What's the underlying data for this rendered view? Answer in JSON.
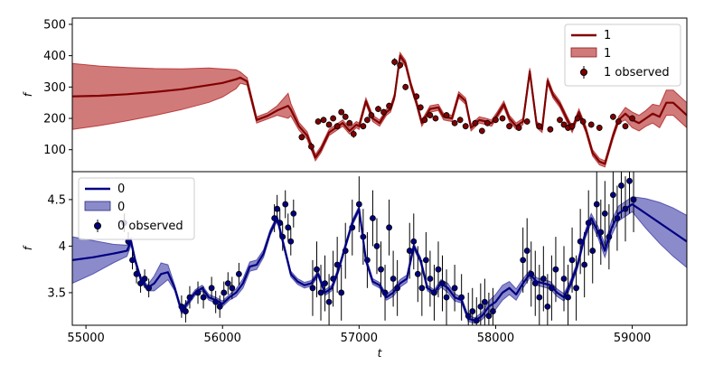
{
  "chart_data": [
    {
      "type": "line",
      "panel": "top",
      "ylabel": "f",
      "xlabel": "",
      "xlim": [
        54900,
        59400
      ],
      "ylim": [
        30,
        520
      ],
      "yticks": [
        100,
        200,
        300,
        400,
        500
      ],
      "legend": {
        "placement": "top-right"
      },
      "colors": {
        "line": "#800000",
        "band": "#b22222",
        "points": "#800000"
      },
      "series": [
        {
          "name": "1",
          "kind": "model",
          "x": [
            54900,
            55100,
            55300,
            55500,
            55700,
            55900,
            56000,
            56100,
            56130,
            56180,
            56250,
            56330,
            56400,
            56480,
            56500,
            56560,
            56620,
            56680,
            56720,
            56780,
            56830,
            56880,
            56930,
            56980,
            57000,
            57050,
            57100,
            57150,
            57200,
            57230,
            57260,
            57300,
            57340,
            57380,
            57420,
            57460,
            57520,
            57580,
            57620,
            57680,
            57730,
            57780,
            57820,
            57880,
            57930,
            57970,
            58010,
            58060,
            58100,
            58150,
            58200,
            58250,
            58300,
            58340,
            58380,
            58420,
            58470,
            58520,
            58560,
            58610,
            58660,
            58710,
            58760,
            58800,
            58860,
            58900,
            58950,
            59000,
            59050,
            59100,
            59150,
            59200,
            59250,
            59300,
            59350,
            59400
          ],
          "y": [
            270,
            272,
            277,
            284,
            293,
            306,
            313,
            325,
            330,
            318,
            195,
            208,
            225,
            240,
            228,
            175,
            145,
            75,
            100,
            155,
            170,
            185,
            160,
            180,
            175,
            255,
            200,
            185,
            220,
            230,
            270,
            400,
            375,
            305,
            250,
            185,
            230,
            235,
            205,
            200,
            275,
            255,
            170,
            195,
            190,
            185,
            210,
            245,
            200,
            175,
            190,
            350,
            180,
            165,
            320,
            275,
            245,
            200,
            165,
            220,
            165,
            90,
            62,
            55,
            145,
            195,
            215,
            195,
            185,
            200,
            215,
            205,
            250,
            250,
            230,
            210
          ],
          "band": [
            105,
            95,
            85,
            75,
            65,
            55,
            45,
            30,
            18,
            12,
            10,
            10,
            15,
            40,
            20,
            12,
            12,
            10,
            10,
            10,
            10,
            10,
            10,
            10,
            10,
            10,
            10,
            10,
            10,
            10,
            10,
            10,
            10,
            10,
            10,
            10,
            10,
            10,
            10,
            10,
            10,
            10,
            10,
            10,
            10,
            10,
            10,
            10,
            10,
            10,
            10,
            10,
            10,
            10,
            10,
            10,
            10,
            10,
            10,
            10,
            10,
            10,
            10,
            10,
            10,
            10,
            20,
            25,
            25,
            25,
            30,
            35,
            40,
            40,
            40,
            40
          ]
        },
        {
          "name": "1 observed",
          "kind": "observed",
          "x": [
            56580,
            56650,
            56700,
            56740,
            56780,
            56810,
            56840,
            56870,
            56900,
            56930,
            56960,
            57030,
            57060,
            57090,
            57140,
            57180,
            57220,
            57260,
            57300,
            57340,
            57420,
            57450,
            57480,
            57520,
            57560,
            57640,
            57700,
            57740,
            57780,
            57850,
            57900,
            57940,
            58000,
            58050,
            58100,
            58170,
            58230,
            58320,
            58400,
            58470,
            58500,
            58530,
            58560,
            58600,
            58640,
            58700,
            58760,
            58860,
            58900,
            58950,
            59000
          ],
          "y": [
            140,
            110,
            190,
            195,
            180,
            200,
            175,
            220,
            205,
            185,
            150,
            175,
            195,
            210,
            230,
            220,
            240,
            380,
            370,
            300,
            270,
            235,
            195,
            210,
            200,
            210,
            185,
            195,
            175,
            185,
            160,
            185,
            195,
            200,
            175,
            170,
            190,
            175,
            165,
            195,
            180,
            170,
            175,
            200,
            190,
            180,
            170,
            205,
            190,
            175,
            200
          ],
          "err": [
            10,
            12,
            10,
            10,
            10,
            10,
            10,
            10,
            10,
            10,
            12,
            10,
            10,
            10,
            10,
            10,
            10,
            12,
            12,
            10,
            10,
            10,
            10,
            10,
            10,
            10,
            10,
            10,
            10,
            10,
            10,
            10,
            10,
            10,
            10,
            10,
            10,
            10,
            10,
            10,
            10,
            10,
            10,
            10,
            10,
            10,
            10,
            10,
            10,
            10,
            10
          ]
        }
      ]
    },
    {
      "type": "line",
      "panel": "bottom",
      "ylabel": "f",
      "xlabel": "t",
      "xlim": [
        54900,
        59400
      ],
      "ylim": [
        3.15,
        4.8
      ],
      "xticks": [
        55000,
        56000,
        57000,
        58000,
        59000
      ],
      "yticks": [
        3.5,
        4.0,
        4.5
      ],
      "legend": {
        "placement": "top-left"
      },
      "colors": {
        "line": "#000080",
        "band": "#3d3da8",
        "points": "#000080"
      },
      "series": [
        {
          "name": "0",
          "kind": "model",
          "x": [
            54900,
            55050,
            55200,
            55300,
            55330,
            55360,
            55400,
            55450,
            55500,
            55550,
            55600,
            55650,
            55700,
            55750,
            55800,
            55850,
            55900,
            55950,
            56000,
            56050,
            56100,
            56150,
            56200,
            56250,
            56300,
            56350,
            56400,
            56450,
            56500,
            56550,
            56600,
            56650,
            56700,
            56750,
            56800,
            56850,
            56900,
            56950,
            57000,
            57050,
            57100,
            57150,
            57200,
            57250,
            57300,
            57350,
            57400,
            57450,
            57500,
            57550,
            57600,
            57650,
            57700,
            57750,
            57800,
            57850,
            57900,
            57950,
            58000,
            58050,
            58100,
            58150,
            58200,
            58250,
            58300,
            58350,
            58400,
            58450,
            58500,
            58550,
            58600,
            58650,
            58700,
            58750,
            58800,
            58850,
            58900,
            58950,
            59000,
            59050,
            59100,
            59200,
            59300,
            59400
          ],
          "y": [
            3.85,
            3.88,
            3.92,
            3.95,
            4.05,
            3.85,
            3.65,
            3.55,
            3.6,
            3.7,
            3.72,
            3.55,
            3.3,
            3.4,
            3.5,
            3.55,
            3.45,
            3.42,
            3.38,
            3.45,
            3.5,
            3.6,
            3.78,
            3.8,
            3.92,
            4.15,
            4.3,
            4.0,
            3.7,
            3.62,
            3.58,
            3.6,
            3.7,
            3.5,
            3.55,
            3.75,
            4.0,
            4.25,
            4.4,
            3.85,
            3.62,
            3.58,
            3.45,
            3.5,
            3.6,
            3.65,
            4.0,
            3.85,
            3.55,
            3.5,
            3.6,
            3.55,
            3.45,
            3.42,
            3.22,
            3.2,
            3.25,
            3.35,
            3.4,
            3.5,
            3.55,
            3.48,
            3.6,
            3.7,
            3.62,
            3.6,
            3.58,
            3.5,
            3.45,
            3.6,
            3.8,
            4.1,
            4.3,
            4.15,
            3.95,
            4.2,
            4.35,
            4.4,
            4.45,
            4.4,
            4.35,
            4.25,
            4.15,
            4.05
          ],
          "band": [
            0.25,
            0.18,
            0.1,
            0.06,
            0.04,
            0.03,
            0.03,
            0.03,
            0.08,
            0.12,
            0.08,
            0.03,
            0.03,
            0.03,
            0.03,
            0.03,
            0.03,
            0.03,
            0.03,
            0.03,
            0.04,
            0.05,
            0.05,
            0.05,
            0.04,
            0.03,
            0.03,
            0.03,
            0.03,
            0.03,
            0.03,
            0.03,
            0.03,
            0.03,
            0.03,
            0.03,
            0.03,
            0.03,
            0.03,
            0.03,
            0.03,
            0.03,
            0.03,
            0.04,
            0.04,
            0.04,
            0.03,
            0.03,
            0.03,
            0.03,
            0.04,
            0.05,
            0.04,
            0.03,
            0.03,
            0.03,
            0.04,
            0.06,
            0.08,
            0.08,
            0.07,
            0.06,
            0.05,
            0.04,
            0.04,
            0.04,
            0.04,
            0.04,
            0.04,
            0.04,
            0.04,
            0.04,
            0.05,
            0.06,
            0.07,
            0.08,
            0.08,
            0.08,
            0.08,
            0.12,
            0.16,
            0.22,
            0.26,
            0.28
          ]
        },
        {
          "name": "0 observed",
          "kind": "observed",
          "x": [
            55280,
            55310,
            55340,
            55370,
            55400,
            55430,
            55460,
            55700,
            55730,
            55760,
            55820,
            55860,
            55920,
            55950,
            55980,
            56010,
            56040,
            56070,
            56120,
            56380,
            56400,
            56420,
            56440,
            56460,
            56480,
            56500,
            56520,
            56660,
            56690,
            56720,
            56750,
            56780,
            56810,
            56840,
            56870,
            56900,
            56950,
            57000,
            57030,
            57060,
            57100,
            57130,
            57160,
            57190,
            57220,
            57250,
            57280,
            57370,
            57400,
            57430,
            57460,
            57490,
            57520,
            57550,
            57580,
            57610,
            57640,
            57700,
            57750,
            57800,
            57830,
            57860,
            57890,
            57920,
            57950,
            57980,
            58200,
            58230,
            58260,
            58290,
            58320,
            58350,
            58380,
            58410,
            58440,
            58500,
            58530,
            58560,
            58590,
            58620,
            58650,
            58680,
            58710,
            58740,
            58770,
            58800,
            58830,
            58860,
            58890,
            58920,
            58950,
            58980,
            59010
          ],
          "y": [
            4.25,
            4.05,
            3.85,
            3.7,
            3.6,
            3.65,
            3.55,
            3.35,
            3.3,
            3.45,
            3.5,
            3.45,
            3.55,
            3.4,
            3.35,
            3.5,
            3.6,
            3.55,
            3.7,
            4.3,
            4.4,
            4.25,
            4.1,
            4.45,
            4.2,
            4.05,
            4.35,
            3.55,
            3.75,
            3.5,
            3.6,
            3.4,
            3.65,
            3.8,
            3.5,
            3.95,
            4.2,
            4.45,
            4.1,
            3.85,
            4.3,
            4.0,
            3.75,
            3.5,
            4.2,
            3.65,
            3.55,
            3.95,
            4.05,
            3.7,
            3.55,
            3.85,
            3.65,
            3.5,
            3.75,
            3.6,
            3.45,
            3.55,
            3.45,
            3.25,
            3.3,
            3.2,
            3.35,
            3.4,
            3.25,
            3.3,
            3.85,
            3.95,
            3.7,
            3.6,
            3.45,
            3.65,
            3.35,
            3.55,
            3.75,
            3.65,
            3.45,
            3.85,
            3.55,
            4.05,
            3.8,
            4.25,
            3.95,
            4.45,
            4.15,
            4.35,
            4.1,
            4.55,
            4.3,
            4.65,
            4.4,
            4.7,
            4.5
          ],
          "err": [
            0.1,
            0.1,
            0.1,
            0.1,
            0.1,
            0.1,
            0.1,
            0.12,
            0.12,
            0.12,
            0.12,
            0.12,
            0.12,
            0.12,
            0.12,
            0.12,
            0.12,
            0.12,
            0.12,
            0.15,
            0.15,
            0.15,
            0.15,
            0.15,
            0.15,
            0.15,
            0.15,
            0.3,
            0.3,
            0.3,
            0.3,
            0.3,
            0.3,
            0.3,
            0.3,
            0.3,
            0.3,
            0.3,
            0.3,
            0.3,
            0.3,
            0.3,
            0.3,
            0.3,
            0.3,
            0.3,
            0.3,
            0.3,
            0.3,
            0.3,
            0.3,
            0.3,
            0.3,
            0.3,
            0.3,
            0.3,
            0.3,
            0.25,
            0.25,
            0.25,
            0.25,
            0.25,
            0.25,
            0.25,
            0.25,
            0.25,
            0.35,
            0.35,
            0.35,
            0.35,
            0.35,
            0.35,
            0.35,
            0.35,
            0.35,
            0.35,
            0.35,
            0.35,
            0.35,
            0.35,
            0.35,
            0.35,
            0.35,
            0.35,
            0.35,
            0.35,
            0.35,
            0.35,
            0.35,
            0.35,
            0.35,
            0.35,
            0.35
          ]
        }
      ]
    }
  ],
  "legend_top": {
    "line_label": "1",
    "band_label": "1",
    "observed_label": "1 observed"
  },
  "legend_bottom": {
    "line_label": "0",
    "band_label": "0",
    "observed_label": "0 observed"
  }
}
